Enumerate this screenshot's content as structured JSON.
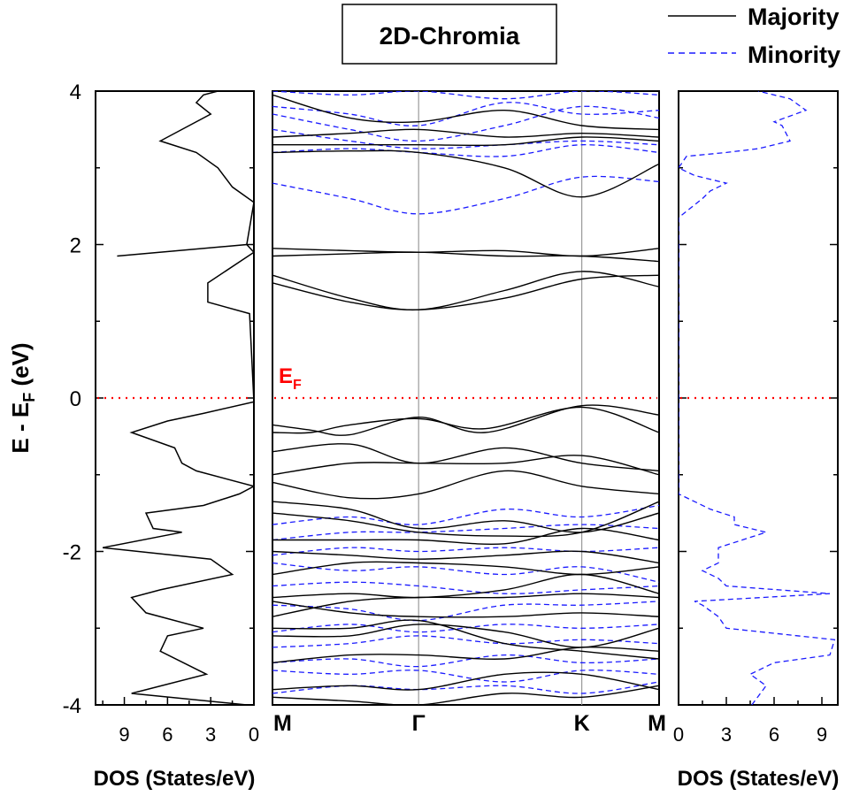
{
  "chart_data": {
    "type": "line",
    "title": "2D-Chromia",
    "ylabel_main": "E - E",
    "ylabel_sub": "F",
    "ylabel_unit": " (eV)",
    "ylim": [
      -4,
      4
    ],
    "y_ticks": [
      -4,
      -2,
      0,
      2,
      4
    ],
    "fermi_label_main": "E",
    "fermi_label_sub": "F",
    "fermi_level": 0,
    "colors": {
      "majority": "#000000",
      "minority": "#1a1aff",
      "fermi": "#ff0000"
    },
    "legend": {
      "placement": "top-right",
      "items": [
        {
          "name": "Majority",
          "style": "solid"
        },
        {
          "name": "Minority",
          "style": "dashed"
        }
      ]
    },
    "band_structure": {
      "k_labels": [
        "M",
        "Γ",
        "K",
        "M"
      ],
      "k_positions": [
        0,
        0.378,
        0.8,
        1
      ],
      "majority": [
        {
          "k": [
            0,
            0.2,
            0.378,
            0.6,
            0.8,
            1
          ],
          "e": [
            3.95,
            3.65,
            3.6,
            3.75,
            3.55,
            3.5
          ]
        },
        {
          "k": [
            0,
            0.2,
            0.378,
            0.6,
            0.8,
            1
          ],
          "e": [
            3.4,
            3.45,
            3.5,
            3.4,
            3.45,
            3.4
          ]
        },
        {
          "k": [
            0,
            0.2,
            0.378,
            0.6,
            0.8,
            1
          ],
          "e": [
            3.3,
            3.3,
            3.3,
            3.3,
            3.4,
            3.35
          ]
        },
        {
          "k": [
            0,
            0.2,
            0.378,
            0.6,
            0.8,
            1
          ],
          "e": [
            3.2,
            3.22,
            3.2,
            3.0,
            2.62,
            3.05
          ]
        },
        {
          "k": [
            0,
            0.2,
            0.378,
            0.6,
            0.8,
            1
          ],
          "e": [
            1.95,
            1.92,
            1.9,
            1.92,
            1.85,
            1.95
          ]
        },
        {
          "k": [
            0,
            0.2,
            0.378,
            0.6,
            0.8,
            1
          ],
          "e": [
            1.85,
            1.88,
            1.9,
            1.85,
            1.85,
            1.78
          ]
        },
        {
          "k": [
            0,
            0.2,
            0.378,
            0.6,
            0.8,
            1
          ],
          "e": [
            1.6,
            1.3,
            1.15,
            1.4,
            1.65,
            1.45
          ]
        },
        {
          "k": [
            0,
            0.2,
            0.378,
            0.6,
            0.8,
            1
          ],
          "e": [
            1.5,
            1.25,
            1.15,
            1.3,
            1.55,
            1.6
          ]
        },
        {
          "k": [
            0,
            0.1,
            0.2,
            0.378,
            0.55,
            0.8,
            1
          ],
          "e": [
            -0.35,
            -0.42,
            -0.48,
            -0.25,
            -0.45,
            -0.1,
            -0.22
          ]
        },
        {
          "k": [
            0,
            0.1,
            0.2,
            0.378,
            0.55,
            0.8,
            1
          ],
          "e": [
            -0.45,
            -0.45,
            -0.35,
            -0.27,
            -0.4,
            -0.12,
            -0.45
          ]
        },
        {
          "k": [
            0,
            0.2,
            0.378,
            0.6,
            0.8,
            1
          ],
          "e": [
            -0.7,
            -0.6,
            -0.85,
            -0.65,
            -0.85,
            -0.95
          ]
        },
        {
          "k": [
            0,
            0.2,
            0.378,
            0.6,
            0.8,
            1
          ],
          "e": [
            -1.0,
            -0.85,
            -0.85,
            -0.85,
            -0.75,
            -1.0
          ]
        },
        {
          "k": [
            0,
            0.2,
            0.378,
            0.6,
            0.8,
            1
          ],
          "e": [
            -1.1,
            -1.3,
            -1.25,
            -0.95,
            -1.15,
            -1.25
          ]
        },
        {
          "k": [
            0,
            0.2,
            0.378,
            0.6,
            0.8,
            1
          ],
          "e": [
            -1.35,
            -1.45,
            -1.7,
            -1.6,
            -1.75,
            -1.5
          ]
        },
        {
          "k": [
            0,
            0.2,
            0.378,
            0.6,
            0.8,
            1
          ],
          "e": [
            -1.5,
            -1.6,
            -1.75,
            -1.8,
            -1.75,
            -1.35
          ]
        },
        {
          "k": [
            0,
            0.2,
            0.378,
            0.6,
            0.8,
            1
          ],
          "e": [
            -1.85,
            -1.85,
            -1.85,
            -1.9,
            -1.7,
            -1.85
          ]
        },
        {
          "k": [
            0,
            0.2,
            0.378,
            0.6,
            0.8,
            1
          ],
          "e": [
            -2.0,
            -2.05,
            -2.1,
            -2.05,
            -2.0,
            -2.15
          ]
        },
        {
          "k": [
            0,
            0.2,
            0.378,
            0.6,
            0.8,
            1
          ],
          "e": [
            -2.3,
            -2.15,
            -2.15,
            -2.2,
            -2.3,
            -2.2
          ]
        },
        {
          "k": [
            0,
            0.2,
            0.378,
            0.6,
            0.8,
            1
          ],
          "e": [
            -2.6,
            -2.55,
            -2.6,
            -2.5,
            -2.3,
            -2.55
          ]
        },
        {
          "k": [
            0,
            0.2,
            0.378,
            0.6,
            0.8,
            1
          ],
          "e": [
            -2.85,
            -2.65,
            -2.6,
            -2.6,
            -2.55,
            -2.6
          ]
        },
        {
          "k": [
            0,
            0.2,
            0.378,
            0.6,
            0.8,
            1
          ],
          "e": [
            -2.65,
            -2.8,
            -2.85,
            -2.85,
            -2.8,
            -2.85
          ]
        },
        {
          "k": [
            0,
            0.2,
            0.378,
            0.6,
            0.8,
            1
          ],
          "e": [
            -3.0,
            -3.0,
            -2.9,
            -3.2,
            -3.3,
            -3.4
          ]
        },
        {
          "k": [
            0,
            0.2,
            0.378,
            0.6,
            0.8,
            1
          ],
          "e": [
            -3.1,
            -3.1,
            -2.95,
            -3.05,
            -3.25,
            -3.0
          ]
        },
        {
          "k": [
            0,
            0.2,
            0.378,
            0.6,
            0.8,
            1
          ],
          "e": [
            -3.45,
            -3.35,
            -3.35,
            -3.4,
            -3.25,
            -3.3
          ]
        },
        {
          "k": [
            0,
            0.2,
            0.378,
            0.6,
            0.8,
            1
          ],
          "e": [
            -3.8,
            -3.75,
            -3.8,
            -3.6,
            -3.6,
            -3.8
          ]
        },
        {
          "k": [
            0,
            0.2,
            0.378,
            0.6,
            0.8,
            1
          ],
          "e": [
            -3.9,
            -3.95,
            -4.0,
            -3.85,
            -3.9,
            -3.75
          ]
        }
      ],
      "minority": [
        {
          "k": [
            0,
            0.2,
            0.378,
            0.6,
            0.8,
            1
          ],
          "e": [
            4.0,
            3.95,
            4.0,
            3.9,
            4.0,
            3.95
          ]
        },
        {
          "k": [
            0,
            0.2,
            0.378,
            0.6,
            0.8,
            1
          ],
          "e": [
            3.8,
            3.7,
            3.55,
            3.85,
            3.7,
            3.75
          ]
        },
        {
          "k": [
            0,
            0.2,
            0.378,
            0.6,
            0.8,
            1
          ],
          "e": [
            3.7,
            3.5,
            3.35,
            3.55,
            3.8,
            3.65
          ]
        },
        {
          "k": [
            0,
            0.2,
            0.378,
            0.6,
            0.8,
            1
          ],
          "e": [
            3.5,
            3.35,
            3.25,
            3.3,
            3.35,
            3.3
          ]
        },
        {
          "k": [
            0,
            0.2,
            0.378,
            0.6,
            0.8,
            1
          ],
          "e": [
            3.2,
            3.25,
            3.2,
            3.15,
            3.3,
            3.2
          ]
        },
        {
          "k": [
            0,
            0.2,
            0.378,
            0.6,
            0.8,
            1
          ],
          "e": [
            2.8,
            2.6,
            2.4,
            2.6,
            2.88,
            2.82
          ]
        },
        {
          "k": [
            0,
            0.2,
            0.378,
            0.6,
            0.8,
            1
          ],
          "e": [
            -1.65,
            -1.55,
            -1.65,
            -1.45,
            -1.55,
            -1.4
          ]
        },
        {
          "k": [
            0,
            0.2,
            0.378,
            0.6,
            0.8,
            1
          ],
          "e": [
            -1.85,
            -1.75,
            -1.75,
            -1.7,
            -1.65,
            -1.7
          ]
        },
        {
          "k": [
            0,
            0.2,
            0.378,
            0.6,
            0.8,
            1
          ],
          "e": [
            -2.05,
            -1.95,
            -2.0,
            -1.95,
            -2.0,
            -1.95
          ]
        },
        {
          "k": [
            0,
            0.2,
            0.378,
            0.6,
            0.8,
            1
          ],
          "e": [
            -2.15,
            -2.25,
            -2.2,
            -2.3,
            -2.2,
            -2.4
          ]
        },
        {
          "k": [
            0,
            0.2,
            0.378,
            0.6,
            0.8,
            1
          ],
          "e": [
            -2.45,
            -2.4,
            -2.45,
            -2.55,
            -2.5,
            -2.45
          ]
        },
        {
          "k": [
            0,
            0.2,
            0.378,
            0.6,
            0.8,
            1
          ],
          "e": [
            -2.7,
            -2.75,
            -2.9,
            -2.7,
            -2.7,
            -2.65
          ]
        },
        {
          "k": [
            0,
            0.2,
            0.378,
            0.6,
            0.8,
            1
          ],
          "e": [
            -3.05,
            -2.95,
            -3.05,
            -2.95,
            -3.0,
            -2.95
          ]
        },
        {
          "k": [
            0,
            0.2,
            0.378,
            0.6,
            0.8,
            1
          ],
          "e": [
            -3.25,
            -3.2,
            -3.1,
            -3.2,
            -3.15,
            -3.2
          ]
        },
        {
          "k": [
            0,
            0.2,
            0.378,
            0.6,
            0.8,
            1
          ],
          "e": [
            -3.45,
            -3.4,
            -3.5,
            -3.35,
            -3.45,
            -3.4
          ]
        },
        {
          "k": [
            0,
            0.2,
            0.378,
            0.6,
            0.8,
            1
          ],
          "e": [
            -3.55,
            -3.6,
            -3.55,
            -3.7,
            -3.55,
            -3.6
          ]
        },
        {
          "k": [
            0,
            0.2,
            0.378,
            0.6,
            0.8,
            1
          ],
          "e": [
            -3.85,
            -3.75,
            -3.8,
            -3.75,
            -3.85,
            -3.7
          ]
        }
      ]
    },
    "dos_majority": {
      "xlabel": "DOS (States/eV)",
      "xlim": [
        0,
        11
      ],
      "x_direction": "reversed",
      "x_ticks": [
        9,
        6,
        3,
        0
      ],
      "points": [
        [
          0.5,
          -4.0
        ],
        [
          8.5,
          -3.85
        ],
        [
          3.3,
          -3.6
        ],
        [
          6.5,
          -3.3
        ],
        [
          6.0,
          -3.1
        ],
        [
          3.5,
          -3.0
        ],
        [
          7.5,
          -2.8
        ],
        [
          8.5,
          -2.6
        ],
        [
          6.5,
          -2.5
        ],
        [
          1.5,
          -2.3
        ],
        [
          3.0,
          -2.1
        ],
        [
          10.5,
          -1.95
        ],
        [
          5.0,
          -1.75
        ],
        [
          7.0,
          -1.7
        ],
        [
          7.5,
          -1.5
        ],
        [
          3.5,
          -1.4
        ],
        [
          1.0,
          -1.25
        ],
        [
          0.0,
          -1.15
        ],
        [
          4.0,
          -0.95
        ],
        [
          5.0,
          -0.85
        ],
        [
          5.5,
          -0.65
        ],
        [
          8.5,
          -0.45
        ],
        [
          6.0,
          -0.3
        ],
        [
          3.5,
          -0.2
        ],
        [
          0.0,
          -0.05
        ],
        [
          0.3,
          1.1
        ],
        [
          3.2,
          1.25
        ],
        [
          3.2,
          1.5
        ],
        [
          0.0,
          1.9
        ],
        [
          0.5,
          2.0
        ],
        [
          9.5,
          1.85
        ],
        [
          0.5,
          2.0
        ],
        [
          0.0,
          2.55
        ],
        [
          1.5,
          2.75
        ],
        [
          2.5,
          3.0
        ],
        [
          4.0,
          3.2
        ],
        [
          6.5,
          3.35
        ],
        [
          4.5,
          3.55
        ],
        [
          3.0,
          3.7
        ],
        [
          4.0,
          3.85
        ],
        [
          3.5,
          3.95
        ],
        [
          2.5,
          4.0
        ]
      ]
    },
    "dos_minority": {
      "xlabel": "DOS (States/eV)",
      "xlim": [
        0,
        10
      ],
      "x_ticks": [
        0,
        3,
        6,
        9
      ],
      "points": [
        [
          4.6,
          -4.0
        ],
        [
          5.5,
          -3.75
        ],
        [
          4.5,
          -3.6
        ],
        [
          5.0,
          -3.55
        ],
        [
          6.0,
          -3.45
        ],
        [
          9.5,
          -3.35
        ],
        [
          9.8,
          -3.15
        ],
        [
          3.0,
          -3.0
        ],
        [
          2.5,
          -2.85
        ],
        [
          1.5,
          -2.7
        ],
        [
          1.0,
          -2.65
        ],
        [
          9.5,
          -2.55
        ],
        [
          3.0,
          -2.45
        ],
        [
          2.5,
          -2.35
        ],
        [
          1.5,
          -2.25
        ],
        [
          2.5,
          -2.15
        ],
        [
          2.5,
          -1.95
        ],
        [
          5.5,
          -1.75
        ],
        [
          3.5,
          -1.65
        ],
        [
          3.5,
          -1.55
        ],
        [
          2.0,
          -1.45
        ],
        [
          1.0,
          -1.35
        ],
        [
          0.0,
          -1.25
        ],
        [
          0.0,
          2.35
        ],
        [
          1.5,
          2.6
        ],
        [
          2.0,
          2.7
        ],
        [
          3.0,
          2.8
        ],
        [
          1.0,
          2.9
        ],
        [
          0.0,
          3.0
        ],
        [
          0.5,
          3.15
        ],
        [
          3.0,
          3.2
        ],
        [
          5.0,
          3.25
        ],
        [
          7.0,
          3.35
        ],
        [
          6.5,
          3.55
        ],
        [
          6.0,
          3.6
        ],
        [
          8.0,
          3.75
        ],
        [
          7.0,
          3.9
        ],
        [
          5.0,
          4.0
        ]
      ]
    }
  }
}
